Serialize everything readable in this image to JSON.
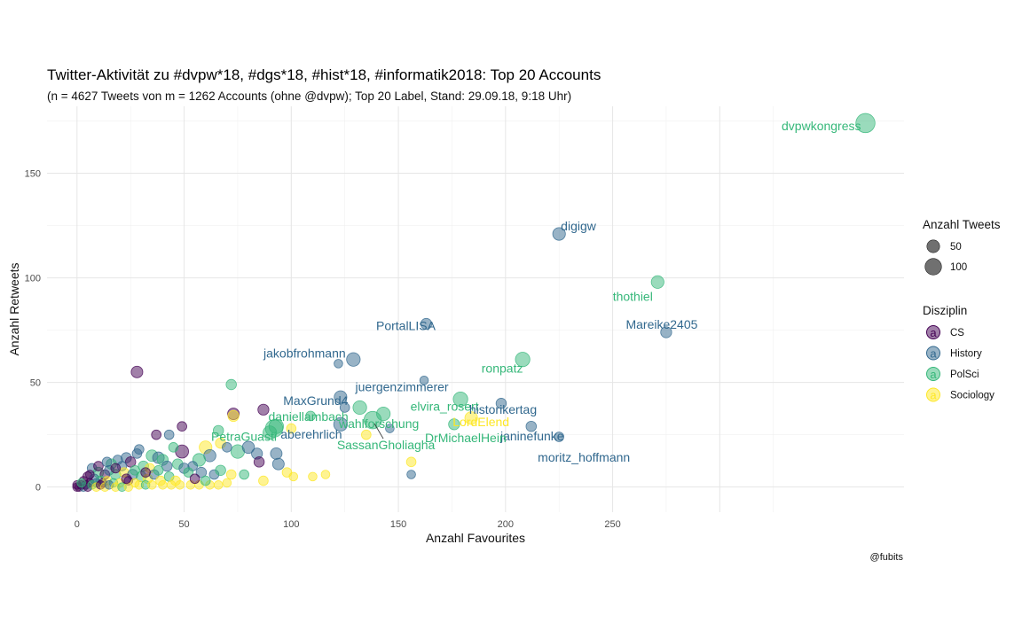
{
  "chart_data": {
    "type": "scatter",
    "title": "Twitter-Aktivität zu #dvpw*18, #dgs*18, #hist*18, #informatik2018: Top 20 Accounts",
    "subtitle": "(n = 4627 Tweets von m = 1262 Accounts (ohne @dvpw); Top 20 Label, Stand: 29.09.18, 9:18 Uhr)",
    "xlabel": "Anzahl Favourites",
    "ylabel": "Anzahl Retweets",
    "caption": "@fubits",
    "xlim": [
      -14,
      386
    ],
    "ylim": [
      -12,
      182
    ],
    "x_ticks": [
      "0",
      "50",
      "100",
      "150",
      "200",
      "250"
    ],
    "y_ticks": [
      "0",
      "50",
      "100",
      "150"
    ],
    "grid": true,
    "legend_position": "right",
    "legend_size": {
      "title": "Anzahl Tweets",
      "items": [
        {
          "label": "50",
          "value": 50
        },
        {
          "label": "100",
          "value": 100
        }
      ]
    },
    "legend_color": {
      "title": "Disziplin",
      "glyph": "a",
      "items": [
        {
          "label": "CS",
          "color": "#440154"
        },
        {
          "label": "History",
          "color": "#31688e"
        },
        {
          "label": "PolSci",
          "color": "#35b779"
        },
        {
          "label": "Sociology",
          "color": "#fde725"
        }
      ]
    },
    "labeled_points": [
      {
        "name": "dvpwkongress",
        "x": 368,
        "y": 174,
        "tweets": 130,
        "group": "PolSci"
      },
      {
        "name": "digigw",
        "x": 225,
        "y": 121,
        "tweets": 40,
        "group": "History"
      },
      {
        "name": "thothiel",
        "x": 271,
        "y": 98,
        "tweets": 40,
        "group": "PolSci"
      },
      {
        "name": "PortalLISA",
        "x": 163,
        "y": 78,
        "tweets": 25,
        "group": "History"
      },
      {
        "name": "Mareike2405",
        "x": 275,
        "y": 74,
        "tweets": 25,
        "group": "History"
      },
      {
        "name": "jakobfrohmann",
        "x": 129,
        "y": 61,
        "tweets": 50,
        "group": "History"
      },
      {
        "name": "ronpatz",
        "x": 208,
        "y": 61,
        "tweets": 60,
        "group": "PolSci"
      },
      {
        "name": "juergenzimmerer",
        "x": 162,
        "y": 51,
        "tweets": 10,
        "group": "History"
      },
      {
        "name": "MaxGrund4",
        "x": 123,
        "y": 43,
        "tweets": 40,
        "group": "History"
      },
      {
        "name": "elvira_rosert",
        "x": 179,
        "y": 42,
        "tweets": 60,
        "group": "PolSci"
      },
      {
        "name": "historikertag",
        "x": 198,
        "y": 40,
        "tweets": 20,
        "group": "History"
      },
      {
        "name": "daniellambach",
        "x": 132,
        "y": 38,
        "tweets": 50,
        "group": "PolSci"
      },
      {
        "name": "wahlforschung",
        "x": 143,
        "y": 35,
        "tweets": 50,
        "group": "PolSci"
      },
      {
        "name": "LordElend",
        "x": 184,
        "y": 33,
        "tweets": 40,
        "group": "Sociology"
      },
      {
        "name": "janinefunke",
        "x": 212,
        "y": 29,
        "tweets": 20,
        "group": "History"
      },
      {
        "name": "PetraGuasti",
        "x": 92,
        "y": 28,
        "tweets": 100,
        "group": "PolSci"
      },
      {
        "name": "aberehrlich",
        "x": 123,
        "y": 30,
        "tweets": 50,
        "group": "History"
      },
      {
        "name": "SassanGholiagha",
        "x": 138,
        "y": 32,
        "tweets": 100,
        "group": "PolSci"
      },
      {
        "name": "DrMichaelHein",
        "x": 176,
        "y": 30,
        "tweets": 25,
        "group": "PolSci"
      },
      {
        "name": "moritz_hoffmann",
        "x": 225,
        "y": 24,
        "tweets": 15,
        "group": "History"
      }
    ],
    "other_points": [
      {
        "x": 28,
        "y": 55,
        "tweets": 30,
        "group": "CS"
      },
      {
        "x": 72,
        "y": 49,
        "tweets": 20,
        "group": "PolSci"
      },
      {
        "x": 73,
        "y": 35,
        "tweets": 30,
        "group": "CS"
      },
      {
        "x": 73,
        "y": 34,
        "tweets": 25,
        "group": "Sociology"
      },
      {
        "x": 87,
        "y": 37,
        "tweets": 25,
        "group": "CS"
      },
      {
        "x": 122,
        "y": 59,
        "tweets": 10,
        "group": "History"
      },
      {
        "x": 125,
        "y": 38,
        "tweets": 15,
        "group": "History"
      },
      {
        "x": 109,
        "y": 34,
        "tweets": 15,
        "group": "PolSci"
      },
      {
        "x": 100,
        "y": 28,
        "tweets": 15,
        "group": "Sociology"
      },
      {
        "x": 135,
        "y": 25,
        "tweets": 15,
        "group": "Sociology"
      },
      {
        "x": 146,
        "y": 28,
        "tweets": 10,
        "group": "History"
      },
      {
        "x": 93,
        "y": 29,
        "tweets": 60,
        "group": "PolSci"
      },
      {
        "x": 90,
        "y": 26,
        "tweets": 50,
        "group": "PolSci"
      },
      {
        "x": 75,
        "y": 17,
        "tweets": 50,
        "group": "PolSci"
      },
      {
        "x": 80,
        "y": 19,
        "tweets": 35,
        "group": "History"
      },
      {
        "x": 84,
        "y": 16,
        "tweets": 25,
        "group": "History"
      },
      {
        "x": 93,
        "y": 16,
        "tweets": 30,
        "group": "History"
      },
      {
        "x": 94,
        "y": 11,
        "tweets": 30,
        "group": "History"
      },
      {
        "x": 85,
        "y": 12,
        "tweets": 20,
        "group": "CS"
      },
      {
        "x": 60,
        "y": 19,
        "tweets": 40,
        "group": "Sociology"
      },
      {
        "x": 62,
        "y": 15,
        "tweets": 35,
        "group": "History"
      },
      {
        "x": 57,
        "y": 13,
        "tweets": 40,
        "group": "PolSci"
      },
      {
        "x": 49,
        "y": 17,
        "tweets": 45,
        "group": "CS"
      },
      {
        "x": 49,
        "y": 29,
        "tweets": 15,
        "group": "CS"
      },
      {
        "x": 66,
        "y": 27,
        "tweets": 20,
        "group": "PolSci"
      },
      {
        "x": 67,
        "y": 21,
        "tweets": 20,
        "group": "Sociology"
      },
      {
        "x": 70,
        "y": 19,
        "tweets": 15,
        "group": "History"
      },
      {
        "x": 43,
        "y": 25,
        "tweets": 15,
        "group": "History"
      },
      {
        "x": 37,
        "y": 25,
        "tweets": 15,
        "group": "CS"
      },
      {
        "x": 45,
        "y": 19,
        "tweets": 15,
        "group": "PolSci"
      },
      {
        "x": 29,
        "y": 18,
        "tweets": 15,
        "group": "History"
      },
      {
        "x": 28,
        "y": 16,
        "tweets": 15,
        "group": "History"
      },
      {
        "x": 35,
        "y": 15,
        "tweets": 30,
        "group": "PolSci"
      },
      {
        "x": 38,
        "y": 14,
        "tweets": 30,
        "group": "History"
      },
      {
        "x": 40,
        "y": 13,
        "tweets": 25,
        "group": "PolSci"
      },
      {
        "x": 23,
        "y": 14,
        "tweets": 20,
        "group": "History"
      },
      {
        "x": 25,
        "y": 12,
        "tweets": 20,
        "group": "CS"
      },
      {
        "x": 19,
        "y": 13,
        "tweets": 15,
        "group": "History"
      },
      {
        "x": 16,
        "y": 11,
        "tweets": 20,
        "group": "PolSci"
      },
      {
        "x": 21,
        "y": 10,
        "tweets": 15,
        "group": "History"
      },
      {
        "x": 31,
        "y": 10,
        "tweets": 20,
        "group": "PolSci"
      },
      {
        "x": 34,
        "y": 9,
        "tweets": 15,
        "group": "Sociology"
      },
      {
        "x": 42,
        "y": 10,
        "tweets": 20,
        "group": "History"
      },
      {
        "x": 47,
        "y": 11,
        "tweets": 20,
        "group": "PolSci"
      },
      {
        "x": 50,
        "y": 9,
        "tweets": 20,
        "group": "History"
      },
      {
        "x": 54,
        "y": 10,
        "tweets": 15,
        "group": "History"
      },
      {
        "x": 52,
        "y": 7,
        "tweets": 15,
        "group": "PolSci"
      },
      {
        "x": 58,
        "y": 7,
        "tweets": 20,
        "group": "History"
      },
      {
        "x": 64,
        "y": 6,
        "tweets": 15,
        "group": "History"
      },
      {
        "x": 67,
        "y": 8,
        "tweets": 20,
        "group": "PolSci"
      },
      {
        "x": 72,
        "y": 6,
        "tweets": 15,
        "group": "Sociology"
      },
      {
        "x": 78,
        "y": 6,
        "tweets": 15,
        "group": "PolSci"
      },
      {
        "x": 87,
        "y": 3,
        "tweets": 15,
        "group": "Sociology"
      },
      {
        "x": 98,
        "y": 7,
        "tweets": 15,
        "group": "Sociology"
      },
      {
        "x": 110,
        "y": 5,
        "tweets": 10,
        "group": "Sociology"
      },
      {
        "x": 101,
        "y": 5,
        "tweets": 10,
        "group": "Sociology"
      },
      {
        "x": 116,
        "y": 6,
        "tweets": 10,
        "group": "Sociology"
      },
      {
        "x": 156,
        "y": 12,
        "tweets": 15,
        "group": "Sociology"
      },
      {
        "x": 156,
        "y": 6,
        "tweets": 10,
        "group": "History"
      },
      {
        "x": 7,
        "y": 9,
        "tweets": 15,
        "group": "History"
      },
      {
        "x": 10,
        "y": 7,
        "tweets": 20,
        "group": "PolSci"
      },
      {
        "x": 13,
        "y": 6,
        "tweets": 15,
        "group": "CS"
      },
      {
        "x": 15,
        "y": 8,
        "tweets": 15,
        "group": "History"
      },
      {
        "x": 18,
        "y": 6,
        "tweets": 20,
        "group": "PolSci"
      },
      {
        "x": 22,
        "y": 7,
        "tweets": 15,
        "group": "Sociology"
      },
      {
        "x": 26,
        "y": 6,
        "tweets": 20,
        "group": "History"
      },
      {
        "x": 30,
        "y": 5,
        "tweets": 20,
        "group": "PolSci"
      },
      {
        "x": 33,
        "y": 4,
        "tweets": 15,
        "group": "Sociology"
      },
      {
        "x": 36,
        "y": 6,
        "tweets": 15,
        "group": "History"
      },
      {
        "x": 39,
        "y": 3,
        "tweets": 15,
        "group": "Sociology"
      },
      {
        "x": 43,
        "y": 5,
        "tweets": 15,
        "group": "PolSci"
      },
      {
        "x": 46,
        "y": 3,
        "tweets": 15,
        "group": "Sociology"
      },
      {
        "x": 5,
        "y": 5,
        "tweets": 15,
        "group": "CS"
      },
      {
        "x": 8,
        "y": 4,
        "tweets": 15,
        "group": "History"
      },
      {
        "x": 11,
        "y": 3,
        "tweets": 15,
        "group": "PolSci"
      },
      {
        "x": 3,
        "y": 3,
        "tweets": 10,
        "group": "CS"
      },
      {
        "x": 6,
        "y": 2,
        "tweets": 10,
        "group": "CS"
      },
      {
        "x": 9,
        "y": 2,
        "tweets": 10,
        "group": "History"
      },
      {
        "x": 12,
        "y": 2,
        "tweets": 10,
        "group": "CS"
      },
      {
        "x": 14,
        "y": 3,
        "tweets": 10,
        "group": "Sociology"
      },
      {
        "x": 17,
        "y": 2,
        "tweets": 10,
        "group": "PolSci"
      },
      {
        "x": 20,
        "y": 2,
        "tweets": 10,
        "group": "Sociology"
      },
      {
        "x": 24,
        "y": 3,
        "tweets": 10,
        "group": "CS"
      },
      {
        "x": 27,
        "y": 2,
        "tweets": 10,
        "group": "Sociology"
      },
      {
        "x": 29,
        "y": 1,
        "tweets": 10,
        "group": "Sociology"
      },
      {
        "x": 32,
        "y": 1,
        "tweets": 10,
        "group": "PolSci"
      },
      {
        "x": 35,
        "y": 1,
        "tweets": 10,
        "group": "Sociology"
      },
      {
        "x": 40,
        "y": 1,
        "tweets": 10,
        "group": "Sociology"
      },
      {
        "x": 44,
        "y": 1,
        "tweets": 10,
        "group": "Sociology"
      },
      {
        "x": 48,
        "y": 1,
        "tweets": 10,
        "group": "Sociology"
      },
      {
        "x": 53,
        "y": 1,
        "tweets": 10,
        "group": "Sociology"
      },
      {
        "x": 57,
        "y": 1,
        "tweets": 10,
        "group": "Sociology"
      },
      {
        "x": 62,
        "y": 1,
        "tweets": 10,
        "group": "Sociology"
      },
      {
        "x": 66,
        "y": 1,
        "tweets": 10,
        "group": "Sociology"
      },
      {
        "x": 70,
        "y": 2,
        "tweets": 10,
        "group": "Sociology"
      },
      {
        "x": 2,
        "y": 1,
        "tweets": 10,
        "group": "CS"
      },
      {
        "x": 4,
        "y": 1,
        "tweets": 10,
        "group": "CS"
      },
      {
        "x": 1,
        "y": 0,
        "tweets": 10,
        "group": "CS"
      },
      {
        "x": 3,
        "y": 0,
        "tweets": 10,
        "group": "History"
      },
      {
        "x": 5,
        "y": 0,
        "tweets": 10,
        "group": "CS"
      },
      {
        "x": 7,
        "y": 1,
        "tweets": 10,
        "group": "PolSci"
      },
      {
        "x": 9,
        "y": 0,
        "tweets": 10,
        "group": "Sociology"
      },
      {
        "x": 11,
        "y": 1,
        "tweets": 10,
        "group": "CS"
      },
      {
        "x": 13,
        "y": 0,
        "tweets": 10,
        "group": "Sociology"
      },
      {
        "x": 15,
        "y": 1,
        "tweets": 10,
        "group": "History"
      },
      {
        "x": 18,
        "y": 0,
        "tweets": 10,
        "group": "Sociology"
      },
      {
        "x": 21,
        "y": 0,
        "tweets": 10,
        "group": "PolSci"
      },
      {
        "x": 24,
        "y": 0,
        "tweets": 10,
        "group": "Sociology"
      },
      {
        "x": 0,
        "y": 1,
        "tweets": 10,
        "group": "CS"
      },
      {
        "x": 0,
        "y": 0,
        "tweets": 10,
        "group": "CS"
      },
      {
        "x": 2,
        "y": 2,
        "tweets": 10,
        "group": "PolSci"
      },
      {
        "x": 6,
        "y": 6,
        "tweets": 10,
        "group": "CS"
      },
      {
        "x": 10,
        "y": 10,
        "tweets": 15,
        "group": "CS"
      },
      {
        "x": 14,
        "y": 12,
        "tweets": 15,
        "group": "History"
      },
      {
        "x": 18,
        "y": 9,
        "tweets": 15,
        "group": "CS"
      },
      {
        "x": 23,
        "y": 4,
        "tweets": 15,
        "group": "CS"
      },
      {
        "x": 27,
        "y": 8,
        "tweets": 15,
        "group": "PolSci"
      },
      {
        "x": 32,
        "y": 7,
        "tweets": 15,
        "group": "CS"
      },
      {
        "x": 38,
        "y": 8,
        "tweets": 15,
        "group": "PolSci"
      },
      {
        "x": 55,
        "y": 4,
        "tweets": 15,
        "group": "CS"
      },
      {
        "x": 60,
        "y": 3,
        "tweets": 15,
        "group": "PolSci"
      }
    ]
  }
}
